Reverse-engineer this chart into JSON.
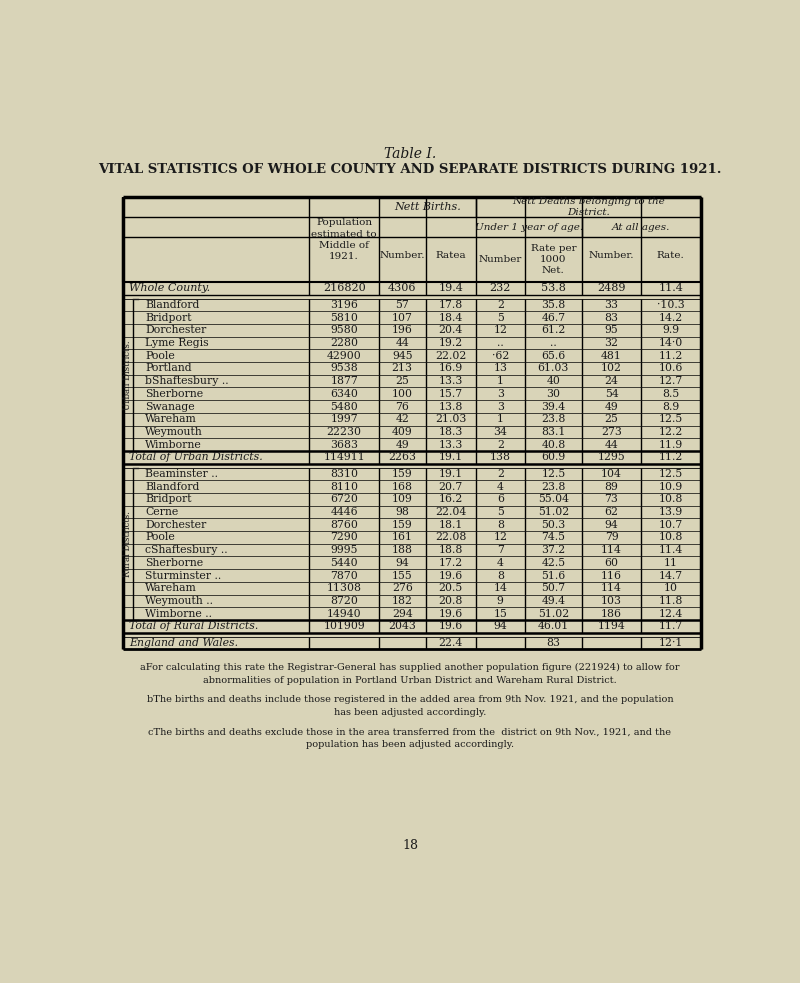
{
  "title1": "Table I.",
  "title2": "VITAL STATISTICS OF WHOLE COUNTY AND SEPARATE DISTRICTS DURING 1921.",
  "bg_color": "#d9d4b8",
  "whole_county": [
    "Whole County.",
    "216820",
    "4306",
    "19.4",
    "232",
    "53.8",
    "2489",
    "11.4"
  ],
  "urban_districts": [
    [
      "Blandford",
      "3196",
      "57",
      "17.8",
      "2",
      "35.8",
      "33",
      "·10.3"
    ],
    [
      "Bridport",
      "5810",
      "107",
      "18.4",
      "5",
      "46.7",
      "83",
      "14.2"
    ],
    [
      "Dorchester",
      "9580",
      "196",
      "20.4",
      "12",
      "61.2",
      "95",
      "9.9"
    ],
    [
      "Lyme Regis",
      "2280",
      "44",
      "19.2",
      "..",
      "..",
      "32",
      "14·0"
    ],
    [
      "Poole",
      "42900",
      "945",
      "22.02",
      "·62",
      "65.6",
      "481",
      "11.2"
    ],
    [
      "Portland",
      "9538",
      "213",
      "16.9",
      "13",
      "61.03",
      "102",
      "10.6"
    ],
    [
      "bShaftesbury ..",
      "1877",
      "25",
      "13.3",
      "1",
      "40",
      "24",
      "12.7"
    ],
    [
      "Sherborne",
      "6340",
      "100",
      "15.7",
      "3",
      "30",
      "54",
      "8.5"
    ],
    [
      "Swanage",
      "5480",
      "76",
      "13.8",
      "3",
      "39.4",
      "49",
      "8.9"
    ],
    [
      "Wareham",
      "1997",
      "42",
      "21.03",
      "1",
      "23.8",
      "25",
      "12.5"
    ],
    [
      "Weymouth",
      "22230",
      "409",
      "18.3",
      "34",
      "83.1",
      "273",
      "12.2"
    ],
    [
      "Wimborne",
      "3683",
      "49",
      "13.3",
      "2",
      "40.8",
      "44",
      "11.9"
    ]
  ],
  "total_urban": [
    "Total of Urban Districts.",
    "114911",
    "2263",
    "19.1",
    "138",
    "60.9",
    "1295",
    "11.2"
  ],
  "rural_districts": [
    [
      "Beaminster ..",
      "8310",
      "159",
      "19.1",
      "2",
      "12.5",
      "104",
      "12.5"
    ],
    [
      "Blandford",
      "8110",
      "168",
      "20.7",
      "4",
      "23.8",
      "89",
      "10.9"
    ],
    [
      "Bridport",
      "6720",
      "109",
      "16.2",
      "6",
      "55.04",
      "73",
      "10.8"
    ],
    [
      "Cerne",
      "4446",
      "98",
      "22.04",
      "5",
      "51.02",
      "62",
      "13.9"
    ],
    [
      "Dorchester",
      "8760",
      "159",
      "18.1",
      "8",
      "50.3",
      "94",
      "10.7"
    ],
    [
      "Poole",
      "7290",
      "161",
      "22.08",
      "12",
      "74.5",
      "79",
      "10.8"
    ],
    [
      "cShaftesbury ..",
      "9995",
      "188",
      "18.8",
      "7",
      "37.2",
      "114",
      "11.4"
    ],
    [
      "Sherborne",
      "5440",
      "94",
      "17.2",
      "4",
      "42.5",
      "60",
      "11"
    ],
    [
      "Sturminster ..",
      "7870",
      "155",
      "19.6",
      "8",
      "51.6",
      "116",
      "14.7"
    ],
    [
      "Wareham",
      "11308",
      "276",
      "20.5",
      "14",
      "50.7",
      "114",
      "10"
    ],
    [
      "Weymouth ..",
      "8720",
      "182",
      "20.8",
      "9",
      "49.4",
      "103",
      "11.8"
    ],
    [
      "Wimborne ..",
      "14940",
      "294",
      "19.6",
      "15",
      "51.02",
      "186",
      "12.4"
    ]
  ],
  "total_rural": [
    "Total of Rural Districts.",
    "101909",
    "2043",
    "19.6",
    "94",
    "46.01",
    "1194",
    "11.7"
  ],
  "england_wales": [
    "England and Wales.",
    "",
    "",
    "22.4",
    "",
    "83",
    "",
    "12·1"
  ],
  "footnote_a": "aFor calculating this rate the Registrar-General has supplied another population figure (221924) to allow for\nabnormalities of population in Portland Urban District and Wareham Rural District.",
  "footnote_b": "bThe births and deaths include those registered in the added area from 9th Nov. 1921, and the population\nhas been adjusted accordingly.",
  "footnote_c": "cThe births and deaths exclude those in the area transferred from the  district on 9th Nov., 1921, and the\npopulation has been adjusted accordingly.",
  "page_number": "18"
}
